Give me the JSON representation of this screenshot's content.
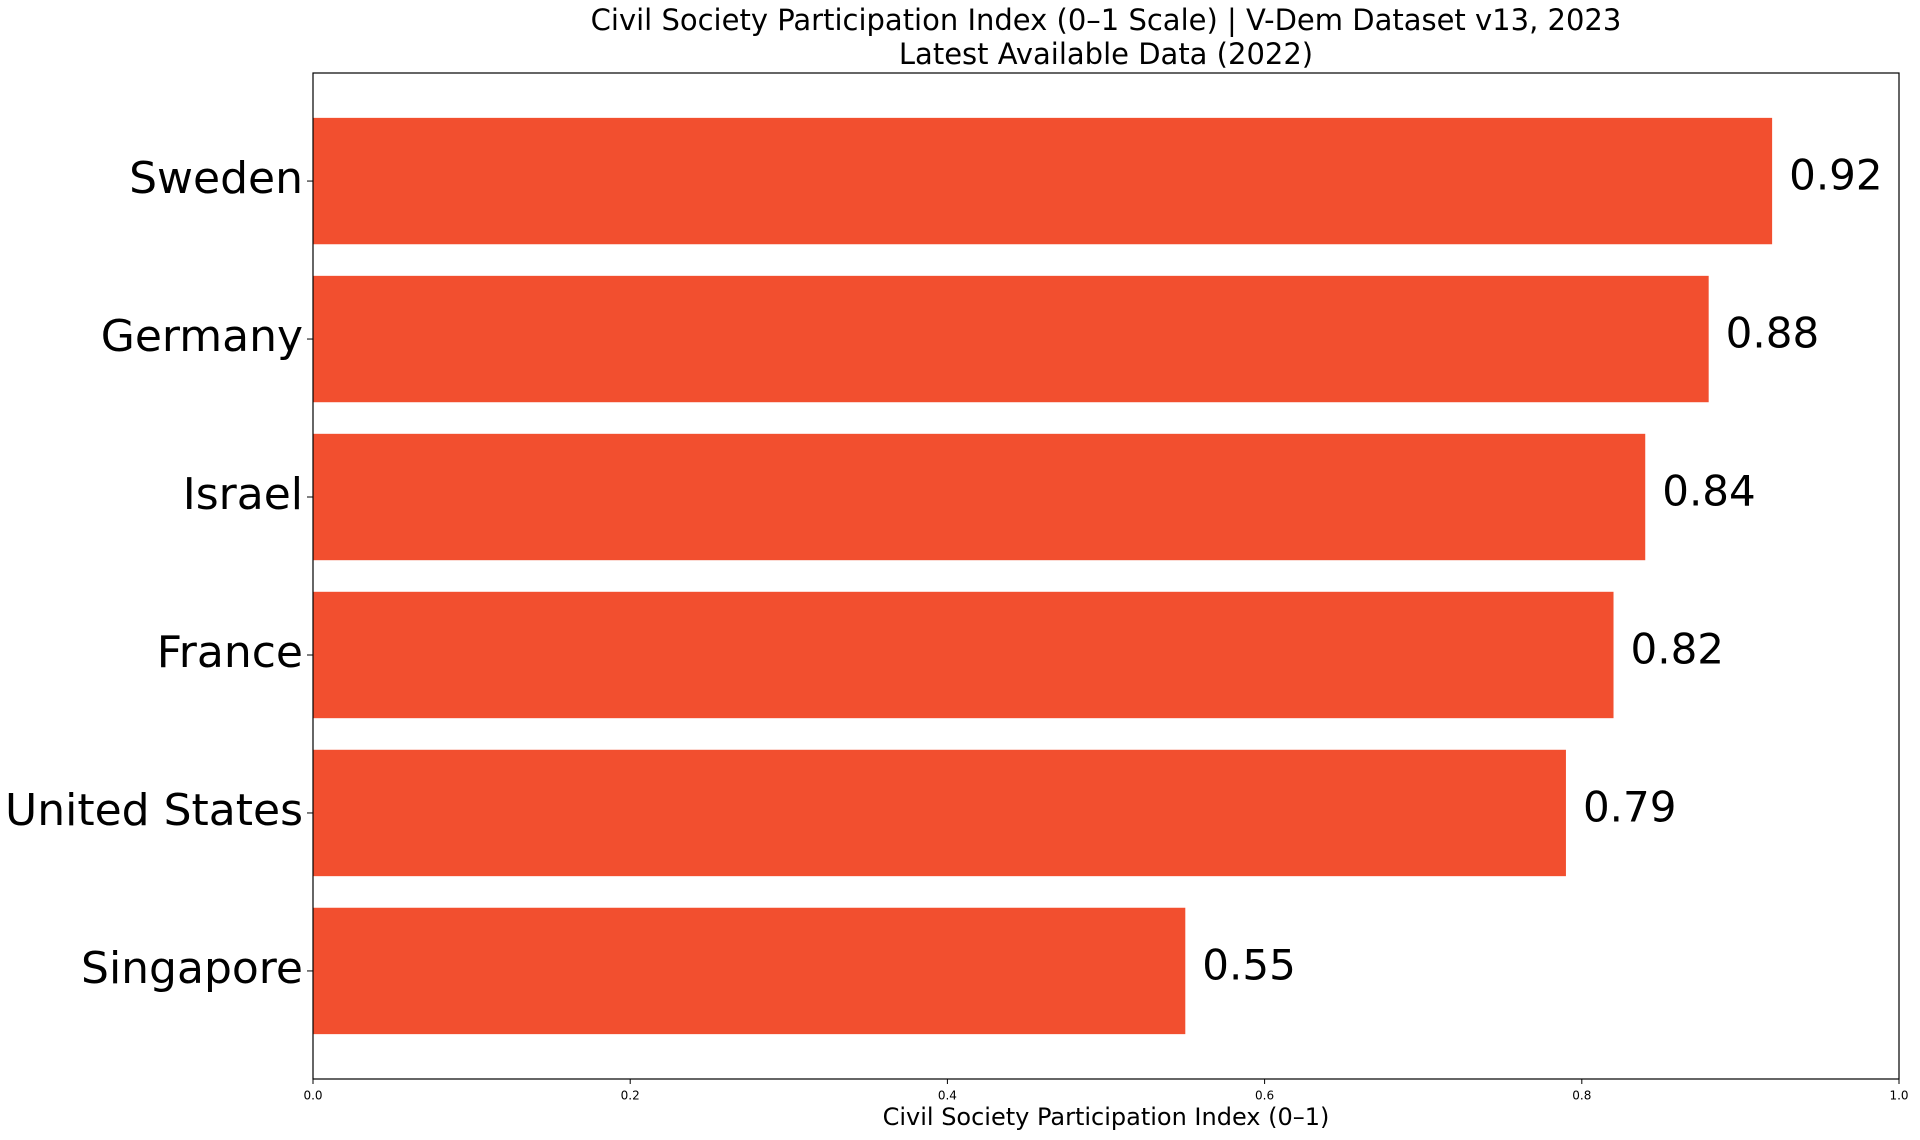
{
  "chart_data": {
    "type": "barh",
    "title": "Civil Society Participation Index (0–1 Scale) | V-Dem Dataset v13, 2023",
    "subtitle": "Latest Available Data (2022)",
    "x_label": "Civil Society Participation Index (0–1)",
    "categories": [
      "Sweden",
      "Germany",
      "Israel",
      "France",
      "United States",
      "Singapore"
    ],
    "values": [
      0.92,
      0.88,
      0.84,
      0.82,
      0.79,
      0.55
    ],
    "color": "#f24f2f",
    "xlim": [
      0,
      1
    ],
    "xticks": [
      {
        "value": 0,
        "label": "0.0"
      },
      0.2,
      0.4,
      0.6,
      0.8,
      {
        "value": 1,
        "label": "1.0"
      }
    ],
    "grid": false
  }
}
